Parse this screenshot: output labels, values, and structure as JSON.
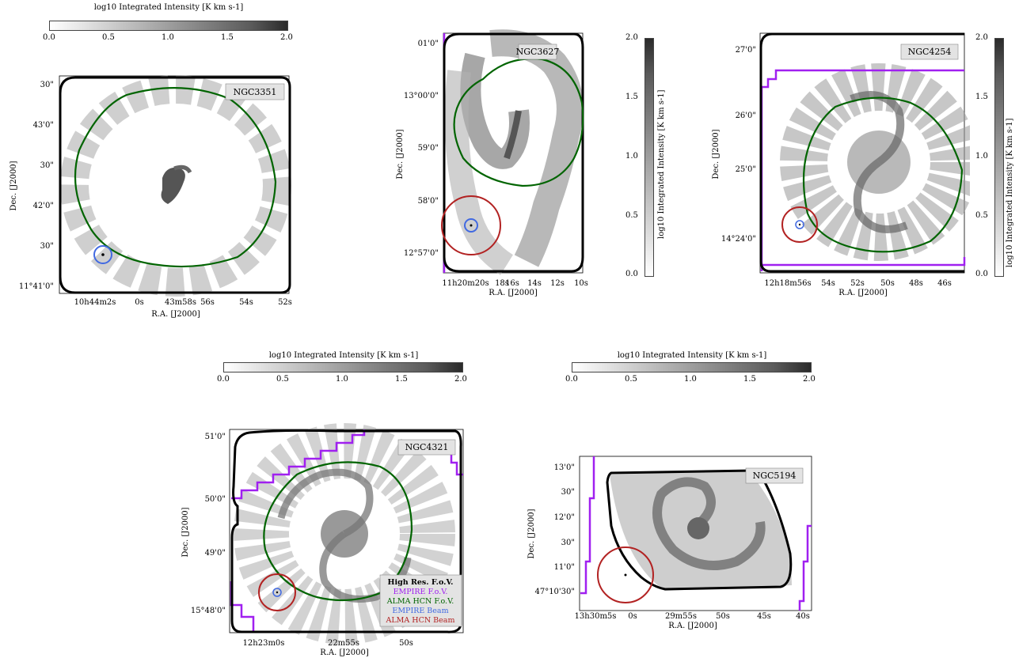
{
  "colorbar": {
    "title": "log10 Integrated Intensity [K km s-1]",
    "ticks": [
      "0.0",
      "0.5",
      "1.0",
      "1.5",
      "2.0"
    ]
  },
  "legend": {
    "items": [
      {
        "label": "High Res. F.o.V.",
        "color": "#000000"
      },
      {
        "label": "EMPIRE F.o.V.",
        "color": "#a020f0"
      },
      {
        "label": "ALMA HCN F.o.V.",
        "color": "#006400"
      },
      {
        "label": "EMPIRE Beam",
        "color": "#4169e1"
      },
      {
        "label": "ALMA HCN Beam",
        "color": "#b22222"
      }
    ]
  },
  "colors": {
    "high_res_fov": "#000000",
    "empire_fov": "#a020f0",
    "alma_fov": "#006400",
    "empire_beam": "#4169e1",
    "alma_beam": "#b22222"
  },
  "chart_data": [
    {
      "type": "heatmap",
      "galaxy": "NGC3351",
      "ylabel": "Dec. [J2000]",
      "xlabel": "R.A. [J2000]",
      "xticks": [
        "10h44m2s",
        "0s",
        "43m58s",
        "56s",
        "54s",
        "52s"
      ],
      "yticks": [
        "30\"",
        "43'0\"",
        "30\"",
        "42'0\"",
        "30\"",
        "11°41'0\""
      ],
      "colorbar_range": [
        0.0,
        2.0
      ]
    },
    {
      "type": "heatmap",
      "galaxy": "NGC3627",
      "ylabel": "Dec. [J2000]",
      "xlabel": "R.A. [J2000]",
      "xticks": [
        "11h20m20s",
        "18s",
        "16s",
        "14s",
        "12s",
        "10s"
      ],
      "yticks": [
        "01'0\"",
        "13°00'0\"",
        "59'0\"",
        "58'0\"",
        "12°57'0\""
      ],
      "colorbar_range": [
        0.0,
        2.0
      ]
    },
    {
      "type": "heatmap",
      "galaxy": "NGC4254",
      "ylabel": "Dec. [J2000]",
      "xlabel": "R.A. [J2000]",
      "xticks": [
        "12h18m56s",
        "54s",
        "52s",
        "50s",
        "48s",
        "46s"
      ],
      "yticks": [
        "27'0\"",
        "26'0\"",
        "25'0\"",
        "14°24'0\""
      ],
      "colorbar_range": [
        0.0,
        2.0
      ]
    },
    {
      "type": "heatmap",
      "galaxy": "NGC4321",
      "ylabel": "Dec. [J2000]",
      "xlabel": "R.A. [J2000]",
      "xticks": [
        "12h23m0s",
        "22m55s",
        "50s"
      ],
      "yticks": [
        "51'0\"",
        "50'0\"",
        "49'0\"",
        "15°48'0\""
      ],
      "colorbar_range": [
        0.0,
        2.0
      ]
    },
    {
      "type": "heatmap",
      "galaxy": "NGC5194",
      "ylabel": "Dec. [J2000]",
      "xlabel": "R.A. [J2000]",
      "xticks": [
        "13h30m5s",
        "0s",
        "29m55s",
        "50s",
        "45s",
        "40s"
      ],
      "yticks": [
        "13'0\"",
        "30\"",
        "12'0\"",
        "30\"",
        "11'0\"",
        "47°10'30\""
      ],
      "colorbar_range": [
        0.0,
        2.0
      ]
    }
  ]
}
